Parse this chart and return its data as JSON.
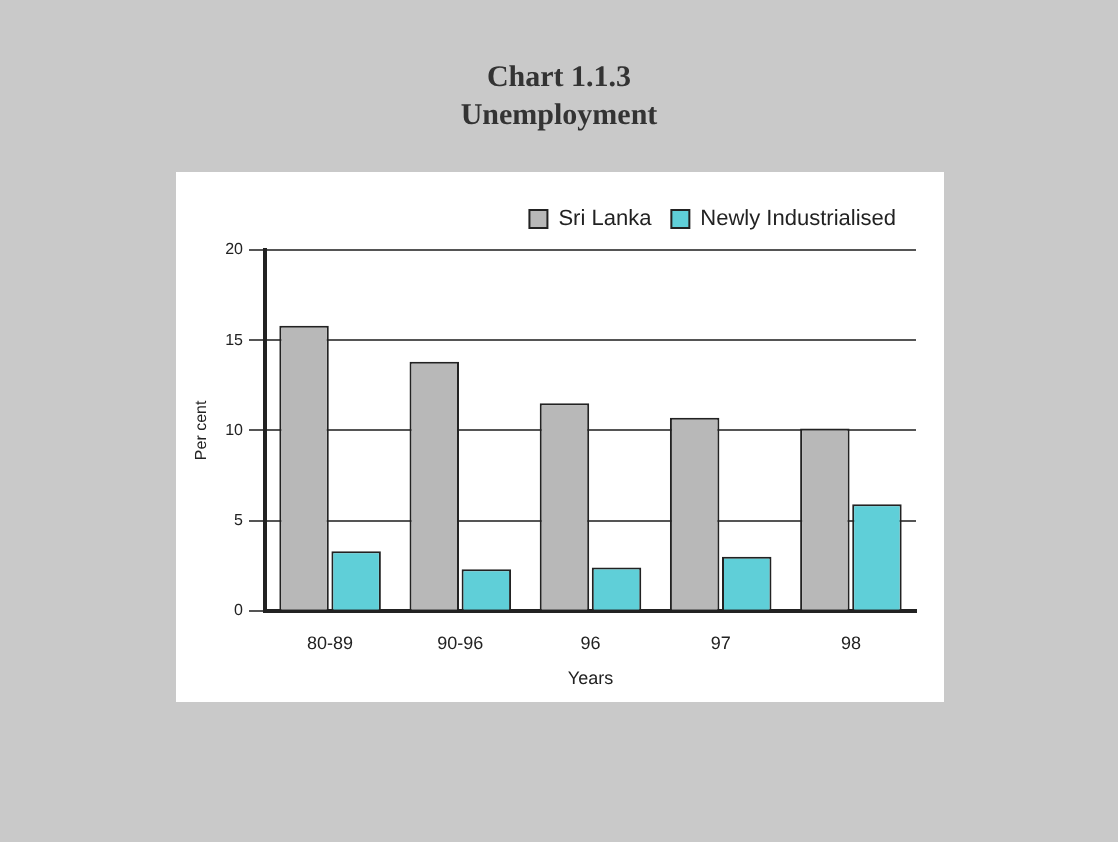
{
  "chart_data": {
    "type": "bar",
    "title": "Chart 1.1.3",
    "subtitle": "Unemployment",
    "xlabel": "Years",
    "ylabel": "Per cent",
    "categories": [
      "80-89",
      "90-96",
      "96",
      "97",
      "98"
    ],
    "series": [
      {
        "name": "Sri Lanka",
        "color": "#b8b8b8",
        "values": [
          15.8,
          13.8,
          11.5,
          10.7,
          10.1
        ]
      },
      {
        "name": "Newly Industrialised",
        "color": "#5fcfd8",
        "values": [
          3.3,
          2.3,
          2.4,
          3.0,
          5.9
        ]
      }
    ],
    "ylim": [
      0,
      20
    ],
    "yticks": [
      0,
      5,
      10,
      15,
      20
    ],
    "grid": "y",
    "legend": "top right"
  }
}
